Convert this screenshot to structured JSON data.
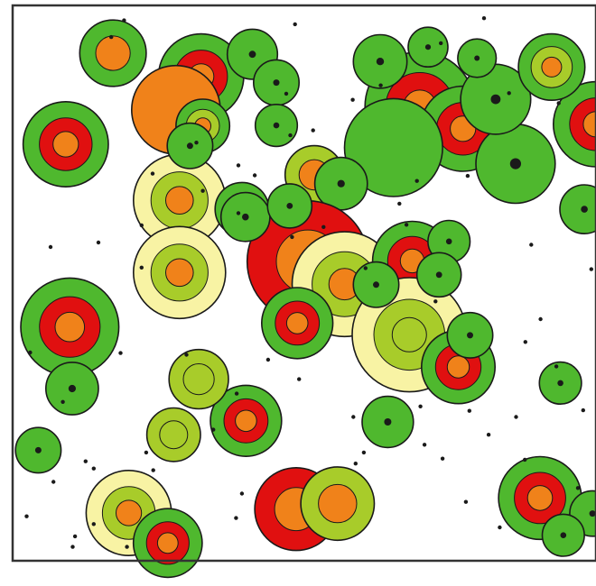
{
  "colors": {
    "background": "#ffffff",
    "frame": "#333333",
    "outline": "#1a1a1a",
    "dark_green": "#2c8a1c",
    "green": "#4fb82e",
    "yellow_green": "#a8cc2a",
    "pale_yellow": "#f8f3a4",
    "red": "#e01010",
    "orange": "#f0821a",
    "dot": "#1a1a1a"
  },
  "chart_data": {
    "type": "scatter",
    "title": "",
    "xlabel": "",
    "ylabel": "",
    "xlim": [
      0,
      100
    ],
    "ylim": [
      0,
      100
    ],
    "grid": false,
    "legend": "none",
    "series": [
      {
        "points": [
          {
            "x": 17.2,
            "y": 91.4,
            "r": 5.7,
            "rings": [
              "green",
              "orange"
            ]
          },
          {
            "x": 32.3,
            "y": 87.2,
            "r": 7.3,
            "rings": [
              "green",
              "red",
              "orange"
            ]
          },
          {
            "x": 28.0,
            "y": 81.2,
            "r": 7.6,
            "rings": [
              "orange"
            ]
          },
          {
            "x": 32.6,
            "y": 78.3,
            "r": 4.6,
            "rings": [
              "green",
              "yellow_green",
              "orange"
            ]
          },
          {
            "x": 9.1,
            "y": 75.0,
            "r": 7.3,
            "rings": [
              "green",
              "red",
              "orange"
            ]
          },
          {
            "x": 69.8,
            "y": 81.8,
            "r": 9.4,
            "rings": [
              "green",
              "red",
              "orange"
            ]
          },
          {
            "x": 77.2,
            "y": 77.8,
            "r": 7.3,
            "rings": [
              "green",
              "red",
              "orange"
            ]
          },
          {
            "x": 100.0,
            "y": 78.6,
            "r": 7.3,
            "rings": [
              "green",
              "red",
              "orange"
            ]
          },
          {
            "x": 65.3,
            "y": 74.4,
            "r": 8.4,
            "rings": [
              "green"
            ]
          },
          {
            "x": 86.2,
            "y": 71.5,
            "r": 6.8,
            "rings": [
              "green",
              "dot"
            ]
          },
          {
            "x": 82.8,
            "y": 83.1,
            "r": 6.0,
            "rings": [
              "green",
              "dot"
            ]
          },
          {
            "x": 92.4,
            "y": 88.9,
            "r": 5.7,
            "rings": [
              "green",
              "yellow_green",
              "orange"
            ]
          },
          {
            "x": 51.7,
            "y": 69.5,
            "r": 5.0,
            "rings": [
              "yellow_green",
              "orange"
            ]
          },
          {
            "x": 56.3,
            "y": 67.9,
            "r": 4.5,
            "rings": [
              "green",
              "dot"
            ]
          },
          {
            "x": 28.6,
            "y": 64.9,
            "r": 7.9,
            "rings": [
              "pale_yellow",
              "yellow_green",
              "orange"
            ]
          },
          {
            "x": 39.3,
            "y": 63.3,
            "r": 4.6,
            "rings": [
              "green",
              "dot"
            ]
          },
          {
            "x": 28.6,
            "y": 51.9,
            "r": 7.9,
            "rings": [
              "pale_yellow",
              "yellow_green",
              "orange"
            ]
          },
          {
            "x": 50.6,
            "y": 53.9,
            "r": 10.4,
            "rings": [
              "red",
              "orange"
            ]
          },
          {
            "x": 56.9,
            "y": 49.8,
            "r": 9.0,
            "rings": [
              "pale_yellow",
              "yellow_green",
              "orange"
            ]
          },
          {
            "x": 68.5,
            "y": 54.0,
            "r": 6.8,
            "rings": [
              "green",
              "red",
              "orange"
            ]
          },
          {
            "x": 9.8,
            "y": 42.1,
            "r": 8.4,
            "rings": [
              "green",
              "red",
              "orange"
            ]
          },
          {
            "x": 48.8,
            "y": 42.8,
            "r": 6.1,
            "rings": [
              "green",
              "red",
              "orange"
            ]
          },
          {
            "x": 68.0,
            "y": 40.7,
            "r": 9.8,
            "rings": [
              "pale_yellow",
              "yellow_green",
              "yellow_green"
            ]
          },
          {
            "x": 76.4,
            "y": 34.9,
            "r": 6.3,
            "rings": [
              "green",
              "red",
              "orange"
            ]
          },
          {
            "x": 40.0,
            "y": 25.2,
            "r": 6.1,
            "rings": [
              "green",
              "red",
              "orange"
            ]
          },
          {
            "x": 31.9,
            "y": 32.7,
            "r": 5.1,
            "rings": [
              "yellow_green",
              "yellow_green"
            ]
          },
          {
            "x": 27.6,
            "y": 22.7,
            "r": 4.6,
            "rings": [
              "yellow_green",
              "yellow_green"
            ]
          },
          {
            "x": 19.9,
            "y": 8.6,
            "r": 7.3,
            "rings": [
              "pale_yellow",
              "yellow_green",
              "orange"
            ]
          },
          {
            "x": 26.6,
            "y": 3.2,
            "r": 5.9,
            "rings": [
              "green",
              "red",
              "orange"
            ]
          },
          {
            "x": 48.6,
            "y": 9.3,
            "r": 7.1,
            "rings": [
              "red",
              "orange"
            ]
          },
          {
            "x": 55.7,
            "y": 10.3,
            "r": 6.3,
            "rings": [
              "yellow_green",
              "orange"
            ]
          },
          {
            "x": 90.4,
            "y": 11.3,
            "r": 7.1,
            "rings": [
              "green",
              "red",
              "orange"
            ]
          },
          {
            "x": 63.0,
            "y": 89.9,
            "r": 4.6,
            "rings": [
              "green",
              "dot"
            ]
          },
          {
            "x": 41.1,
            "y": 91.2,
            "r": 4.3,
            "rings": [
              "green",
              "dot"
            ]
          },
          {
            "x": 45.2,
            "y": 86.1,
            "r": 3.9,
            "rings": [
              "green",
              "dot"
            ]
          },
          {
            "x": 45.2,
            "y": 78.4,
            "r": 3.6,
            "rings": [
              "green",
              "dot"
            ]
          },
          {
            "x": 30.4,
            "y": 74.7,
            "r": 3.9,
            "rings": [
              "green",
              "dot"
            ]
          },
          {
            "x": 79.6,
            "y": 90.5,
            "r": 3.3,
            "rings": [
              "green",
              "dot"
            ]
          },
          {
            "x": 71.2,
            "y": 92.5,
            "r": 3.4,
            "rings": [
              "green",
              "dot"
            ]
          },
          {
            "x": 39.9,
            "y": 61.9,
            "r": 4.2,
            "rings": [
              "green",
              "dot"
            ]
          },
          {
            "x": 47.5,
            "y": 63.9,
            "r": 3.8,
            "rings": [
              "green",
              "dot"
            ]
          },
          {
            "x": 74.8,
            "y": 57.5,
            "r": 3.6,
            "rings": [
              "green",
              "dot"
            ]
          },
          {
            "x": 98.0,
            "y": 63.3,
            "r": 4.2,
            "rings": [
              "green",
              "dot"
            ]
          },
          {
            "x": 73.1,
            "y": 51.5,
            "r": 3.8,
            "rings": [
              "green",
              "dot"
            ]
          },
          {
            "x": 62.3,
            "y": 49.7,
            "r": 3.9,
            "rings": [
              "green",
              "dot"
            ]
          },
          {
            "x": 10.2,
            "y": 31.0,
            "r": 4.5,
            "rings": [
              "green",
              "dot"
            ]
          },
          {
            "x": 4.4,
            "y": 19.9,
            "r": 3.9,
            "rings": [
              "green",
              "dot"
            ]
          },
          {
            "x": 64.3,
            "y": 25.0,
            "r": 4.4,
            "rings": [
              "green",
              "dot"
            ]
          },
          {
            "x": 78.4,
            "y": 40.6,
            "r": 3.9,
            "rings": [
              "green",
              "dot"
            ]
          },
          {
            "x": 93.9,
            "y": 32.0,
            "r": 3.6,
            "rings": [
              "green",
              "dot"
            ]
          },
          {
            "x": 99.4,
            "y": 8.5,
            "r": 3.9,
            "rings": [
              "green",
              "dot"
            ]
          },
          {
            "x": 94.4,
            "y": 4.6,
            "r": 3.6,
            "rings": [
              "green",
              "dot"
            ]
          }
        ]
      },
      {
        "small": [
          [
            19.1,
            97.3
          ],
          [
            16.9,
            94.3
          ],
          [
            48.4,
            96.6
          ],
          [
            80.8,
            97.7
          ],
          [
            73.4,
            93.2
          ],
          [
            93.6,
            82.4
          ],
          [
            46.9,
            84.1
          ],
          [
            47.6,
            76.6
          ],
          [
            31.5,
            75.3
          ],
          [
            24.0,
            69.7
          ],
          [
            66.3,
            64.3
          ],
          [
            22.1,
            60.4
          ],
          [
            6.5,
            56.5
          ],
          [
            22.1,
            52.8
          ],
          [
            60.5,
            52.7
          ],
          [
            88.9,
            56.9
          ],
          [
            99.2,
            52.5
          ],
          [
            72.5,
            46.7
          ],
          [
            90.5,
            43.5
          ],
          [
            87.9,
            39.4
          ],
          [
            3.0,
            37.5
          ],
          [
            18.5,
            37.4
          ],
          [
            29.8,
            37.1
          ],
          [
            43.8,
            36.2
          ],
          [
            93.2,
            35.0
          ],
          [
            49.1,
            32.7
          ],
          [
            58.4,
            25.9
          ],
          [
            69.9,
            27.8
          ],
          [
            78.3,
            27.0
          ],
          [
            86.3,
            25.9
          ],
          [
            97.8,
            27.1
          ],
          [
            8.6,
            28.6
          ],
          [
            38.4,
            30.1
          ],
          [
            12.5,
            17.9
          ],
          [
            22.9,
            19.5
          ],
          [
            34.4,
            23.6
          ],
          [
            60.2,
            19.5
          ],
          [
            70.6,
            20.9
          ],
          [
            73.7,
            18.4
          ],
          [
            81.6,
            22.7
          ],
          [
            87.8,
            18.2
          ],
          [
            7.0,
            14.2
          ],
          [
            13.9,
            16.6
          ],
          [
            24.1,
            16.3
          ],
          [
            39.3,
            12.1
          ],
          [
            58.8,
            17.5
          ],
          [
            77.7,
            10.6
          ],
          [
            96.9,
            13.1
          ],
          [
            10.7,
            4.4
          ],
          [
            13.9,
            6.6
          ],
          [
            19.6,
            2.5
          ],
          [
            38.3,
            7.7
          ],
          [
            83.5,
            6.0
          ],
          [
            10.3,
            2.5
          ],
          [
            2.4,
            8.0
          ],
          [
            38.7,
            62.6
          ],
          [
            32.6,
            66.6
          ],
          [
            38.7,
            71.2
          ],
          [
            51.5,
            77.5
          ],
          [
            63.1,
            85.6
          ],
          [
            69.3,
            68.4
          ],
          [
            78.0,
            69.3
          ],
          [
            85.1,
            84.2
          ],
          [
            14.7,
            57.3
          ],
          [
            58.3,
            83.0
          ],
          [
            41.5,
            69.4
          ],
          [
            53.3,
            60.1
          ],
          [
            67.5,
            60.5
          ],
          [
            47.9,
            58.3
          ]
        ]
      }
    ]
  }
}
